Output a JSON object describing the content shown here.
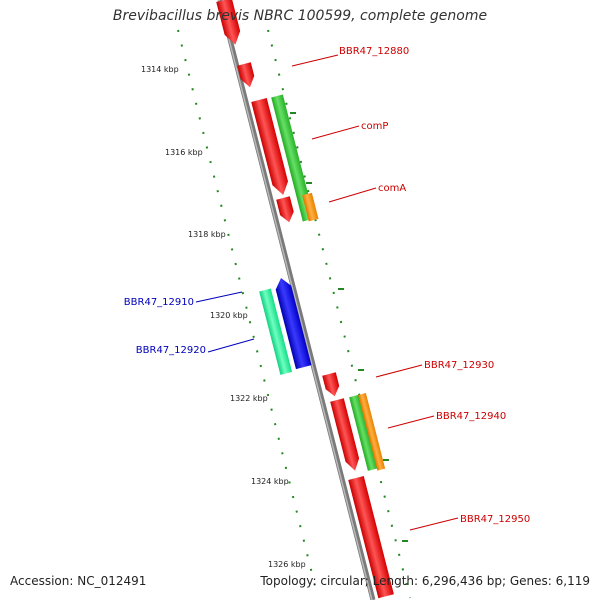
{
  "title": "Brevibacillus brevis NBRC 100599, complete genome",
  "footer": {
    "accession": "Accession: NC_012491",
    "summary": "Topology: circular; Length: 6,296,436 bp; Genes: 6,119"
  },
  "colors": {
    "backbone": "#8a8a8a",
    "forward_gene": "#ee1111",
    "reverse_gene": "#1111ee",
    "cog_green": "#33cc33",
    "cog_orange": "#ff9900",
    "cog_teal": "#22ee99",
    "tick_green": "#228822",
    "label_red": "#cc0000",
    "label_blue": "#0000bb"
  },
  "kbp_ticks": [
    "1314 kbp",
    "1316 kbp",
    "1318 kbp",
    "1320 kbp",
    "1322 kbp",
    "1324 kbp",
    "1326 kbp"
  ],
  "gene_labels": [
    {
      "text": "BBR47_12880",
      "strand": "forward"
    },
    {
      "text": "comP",
      "strand": "forward"
    },
    {
      "text": "comA",
      "strand": "forward"
    },
    {
      "text": "BBR47_12910",
      "strand": "reverse"
    },
    {
      "text": "BBR47_12920",
      "strand": "reverse"
    },
    {
      "text": "BBR47_12930",
      "strand": "forward"
    },
    {
      "text": "BBR47_12940",
      "strand": "forward"
    },
    {
      "text": "BBR47_12950",
      "strand": "forward"
    }
  ]
}
